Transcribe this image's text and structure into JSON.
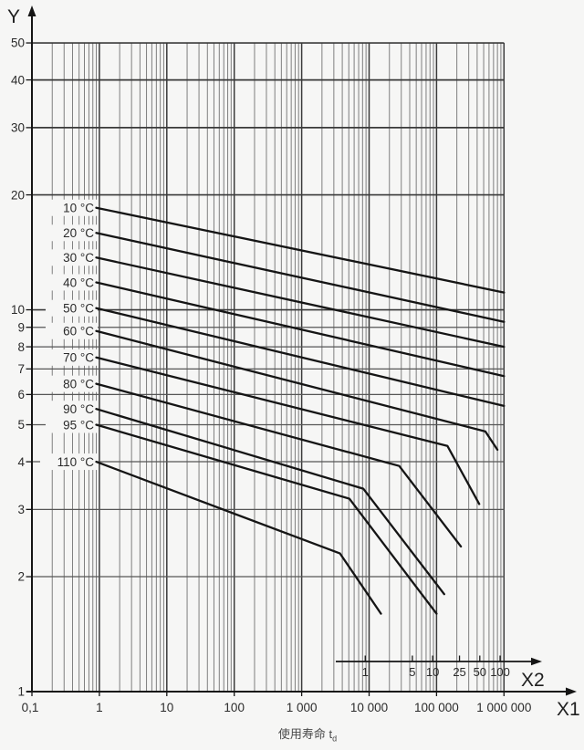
{
  "page": {
    "background": "#f6f6f5"
  },
  "chart_data": {
    "type": "line",
    "scale": "log-log",
    "grid": "on",
    "colors": {
      "curve": "#151515",
      "axis": "#151515",
      "grid_major": "#3a3a3a",
      "grid_minor": "#7f7f7f",
      "text": "#2b2b2b"
    },
    "y_axis": {
      "label": "Y",
      "min": 1,
      "max": 50,
      "ticks": [
        1,
        2,
        3,
        4,
        5,
        6,
        7,
        8,
        9,
        10,
        20,
        30,
        40,
        50
      ],
      "tick_labels": [
        "1",
        "2",
        "3",
        "4",
        "5",
        "6",
        "7",
        "8",
        "9",
        "10",
        "20",
        "30",
        "40",
        "50"
      ]
    },
    "x_axis": {
      "label": "X1",
      "min": 0.1,
      "max": 1000000,
      "ticks": [
        0.1,
        1,
        10,
        100,
        1000,
        10000,
        100000,
        1000000
      ],
      "tick_labels": [
        "0,1",
        "1",
        "10",
        "100",
        "1 000",
        "10 000",
        "100 000",
        "1 000 000"
      ]
    },
    "x2_axis": {
      "label": "X2",
      "ticks": [
        1,
        5,
        10,
        25,
        50,
        100
      ],
      "tick_labels": [
        "1",
        "5",
        "10",
        "25",
        "50",
        "100"
      ],
      "x1_hours_per_x2_unit": 8760
    },
    "caption": {
      "text": "使用寿命  t",
      "sub": "d"
    },
    "series": [
      {
        "name": "10 °C",
        "points": [
          [
            0.9,
            18.5
          ],
          [
            1000000,
            11.1
          ]
        ]
      },
      {
        "name": "20 °C",
        "points": [
          [
            0.9,
            15.9
          ],
          [
            1000000,
            9.3
          ]
        ]
      },
      {
        "name": "30 °C",
        "points": [
          [
            0.9,
            13.7
          ],
          [
            1000000,
            8.0
          ]
        ]
      },
      {
        "name": "40 °C",
        "points": [
          [
            0.9,
            11.8
          ],
          [
            1000000,
            6.7
          ]
        ]
      },
      {
        "name": "50 °C",
        "points": [
          [
            0.9,
            10.1
          ],
          [
            1000000,
            5.6
          ]
        ]
      },
      {
        "name": "60 °C",
        "points": [
          [
            0.9,
            8.8
          ],
          [
            530000,
            4.8
          ],
          [
            800000,
            4.3
          ]
        ]
      },
      {
        "name": "70 °C",
        "points": [
          [
            0.9,
            7.5
          ],
          [
            145000,
            4.4
          ],
          [
            430000,
            3.1
          ]
        ]
      },
      {
        "name": "80 °C",
        "points": [
          [
            0.9,
            6.4
          ],
          [
            28000,
            3.9
          ],
          [
            230000,
            2.4
          ]
        ]
      },
      {
        "name": "90 °C",
        "points": [
          [
            0.9,
            5.5
          ],
          [
            8200,
            3.4
          ],
          [
            130000,
            1.8
          ]
        ]
      },
      {
        "name": "95 °C",
        "points": [
          [
            0.9,
            5.0
          ],
          [
            5100,
            3.2
          ],
          [
            100000,
            1.6
          ]
        ]
      },
      {
        "name": "110 °C",
        "points": [
          [
            0.9,
            4.0
          ],
          [
            3700,
            2.3
          ],
          [
            15000,
            1.6
          ]
        ]
      }
    ]
  }
}
